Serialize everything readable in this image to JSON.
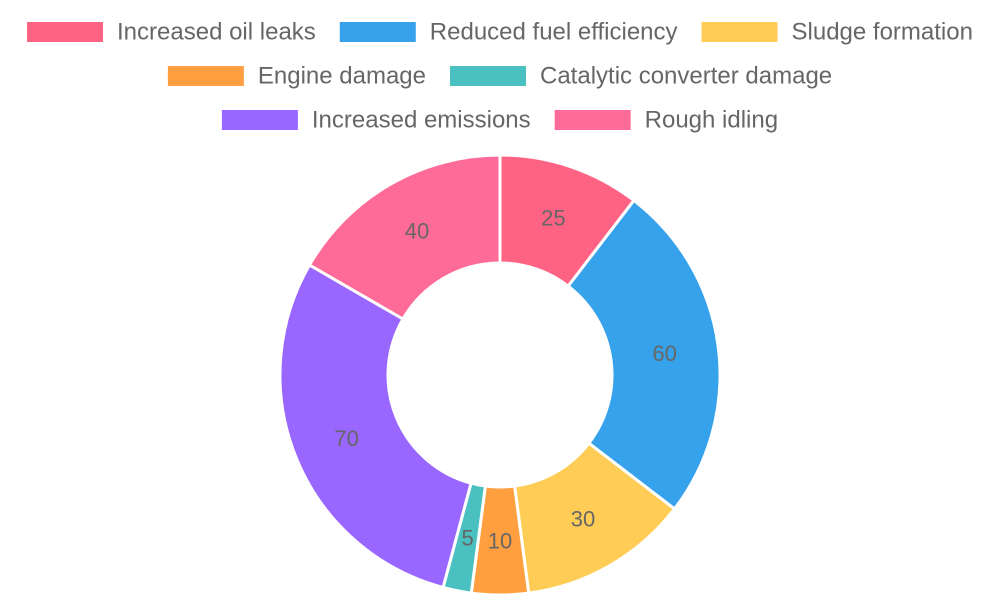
{
  "chart_data": {
    "type": "pie",
    "variant": "doughnut",
    "title": "",
    "legend_position": "top",
    "categories": [
      "Increased oil leaks",
      "Reduced fuel efficiency",
      "Sludge formation",
      "Engine damage",
      "Catalytic converter damage",
      "Increased emissions",
      "Rough idling"
    ],
    "values": [
      25,
      60,
      30,
      10,
      5,
      70,
      40
    ],
    "colors": [
      "#ff6384",
      "#36a2eb",
      "#ffcd56",
      "#ff9f40",
      "#4bc0c0",
      "#9966ff",
      "#ff6b98"
    ]
  }
}
